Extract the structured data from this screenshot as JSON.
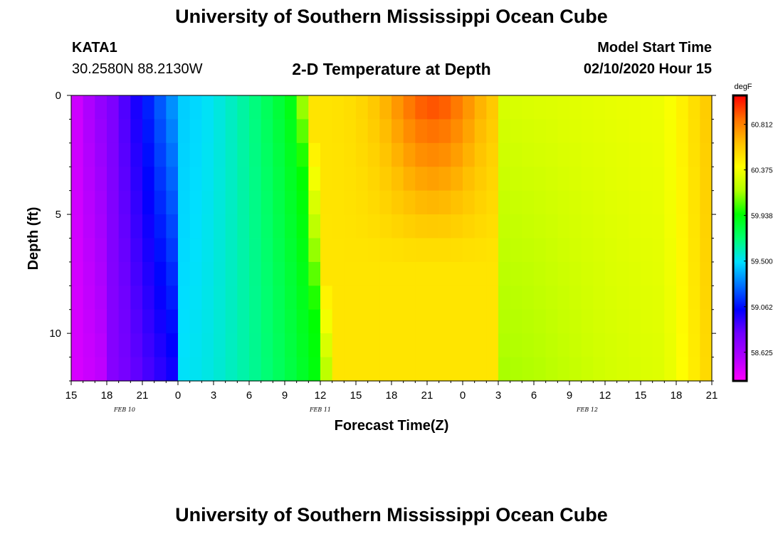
{
  "header": {
    "title": "University of Southern Mississippi Ocean Cube",
    "station_id": "KATA1",
    "station_coords": "30.2580N 88.2130W",
    "plot_title": "2-D Temperature at Depth",
    "model_label": "Model Start Time",
    "model_time": "02/10/2020 Hour 15"
  },
  "footer": {
    "title": "University of Southern Mississippi Ocean Cube"
  },
  "chart_data": {
    "type": "heatmap",
    "xlabel": "Forecast Time(Z)",
    "ylabel": "Depth (ft)",
    "x_tick_labels": [
      "15",
      "18",
      "21",
      "0",
      "3",
      "6",
      "9",
      "12",
      "15",
      "18",
      "21",
      "0",
      "3",
      "6",
      "9",
      "12",
      "15",
      "18",
      "21"
    ],
    "date_labels": [
      {
        "label": "FEB 10",
        "hour_index": 4.5
      },
      {
        "label": "FEB 11",
        "hour_index": 21
      },
      {
        "label": "FEB 12",
        "hour_index": 43.5
      }
    ],
    "hours_range": [
      0,
      54
    ],
    "y_ticks": [
      0,
      5,
      10
    ],
    "y_range": [
      0,
      12
    ],
    "colorbar": {
      "unit": "degF",
      "labels": [
        60.812,
        60.375,
        59.938,
        59.5,
        59.062,
        58.625
      ],
      "range": [
        58.35,
        61.09
      ],
      "colors": [
        "#ff00ff",
        "#b000ff",
        "#7000ff",
        "#0000ff",
        "#0070ff",
        "#00e0ff",
        "#00ff70",
        "#00ff00",
        "#b0ff00",
        "#ffff00",
        "#ffc000",
        "#ff7000",
        "#ff0000"
      ]
    },
    "grid": false,
    "legend_placement": "right"
  }
}
